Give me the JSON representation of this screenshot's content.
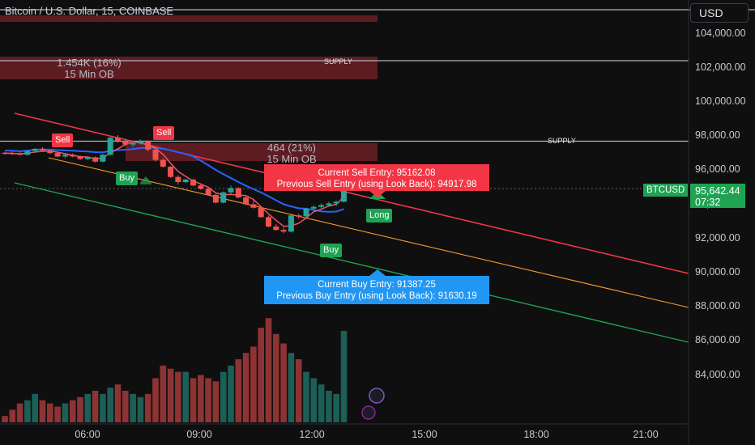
{
  "header": {
    "title": "Bitcoin / U.S. Dollar, 15, COINBASE",
    "currency": "USD"
  },
  "y_axis": [
    "104,000.00",
    "102,000.00",
    "100,000.00",
    "98,000.00",
    "96,000.00",
    "94,000.00",
    "92,000.00",
    "90,000.00",
    "88,000.00",
    "86,000.00",
    "84,000.00"
  ],
  "x_axis": [
    "06:00",
    "09:00",
    "12:00",
    "15:00",
    "18:00",
    "21:00"
  ],
  "zones": [
    {
      "line1": "1.454K (16%)",
      "line2": "15 Min OB",
      "supply": "SUPPLY"
    },
    {
      "line1": "464 (21%)",
      "line2": "15 Min OB",
      "supply": "SUPPLY"
    }
  ],
  "signals": {
    "sell": "Sell",
    "buy": "Buy",
    "long": "Long"
  },
  "sell_entry": {
    "current": "Current Sell Entry: 95162.08",
    "previous": "Previous Sell Entry (using Look Back): 94917.98"
  },
  "buy_entry": {
    "current": "Current Buy Entry: 91387.25",
    "previous": "Previous Buy Entry (using Look Back): 91630.19"
  },
  "price": {
    "symbol": "BTCUSD",
    "last": "95,642.44",
    "countdown": "07:32"
  },
  "colors": {
    "up": "#26a69a",
    "down": "#ef5350",
    "sell": "#f23645",
    "buy": "#1fa353",
    "info": "#2196f3"
  },
  "chart_data": {
    "type": "candlestick",
    "candles": [
      [
        97020,
        97080,
        96900,
        97000
      ],
      [
        97000,
        97100,
        96900,
        96970
      ],
      [
        96970,
        97050,
        96860,
        96900
      ],
      [
        96900,
        97150,
        96850,
        97120
      ],
      [
        97120,
        97300,
        97050,
        97250
      ],
      [
        97250,
        97350,
        97100,
        97150
      ],
      [
        97150,
        97200,
        96950,
        97000
      ],
      [
        97000,
        97050,
        96750,
        96800
      ],
      [
        96800,
        96950,
        96700,
        96900
      ],
      [
        96900,
        96980,
        96750,
        96800
      ],
      [
        96800,
        96850,
        96600,
        96650
      ],
      [
        96650,
        96800,
        96600,
        96750
      ],
      [
        96750,
        96800,
        96450,
        96500
      ],
      [
        96500,
        96950,
        96450,
        96900
      ],
      [
        96900,
        97950,
        96850,
        97900
      ],
      [
        97900,
        98050,
        97600,
        97700
      ],
      [
        97700,
        97850,
        97400,
        97500
      ],
      [
        97500,
        97700,
        97350,
        97600
      ],
      [
        97600,
        97800,
        97500,
        97700
      ],
      [
        97700,
        97750,
        97100,
        97200
      ],
      [
        97200,
        97250,
        96500,
        96600
      ],
      [
        96600,
        96700,
        96150,
        96200
      ],
      [
        96200,
        96250,
        95550,
        95600
      ],
      [
        95600,
        95700,
        95150,
        95300
      ],
      [
        95300,
        95500,
        95250,
        95450
      ],
      [
        95450,
        95500,
        95050,
        95100
      ],
      [
        95100,
        95200,
        94850,
        94900
      ],
      [
        94900,
        95000,
        94500,
        94550
      ],
      [
        94550,
        94600,
        94050,
        94100
      ],
      [
        94100,
        94750,
        94050,
        94700
      ],
      [
        94700,
        95100,
        94600,
        94950
      ],
      [
        94950,
        95000,
        94350,
        94400
      ],
      [
        94400,
        94500,
        93950,
        94000
      ],
      [
        94000,
        94250,
        93750,
        93800
      ],
      [
        93800,
        93850,
        93200,
        93250
      ],
      [
        93250,
        93350,
        92650,
        92700
      ],
      [
        92700,
        92850,
        92450,
        92500
      ],
      [
        92500,
        92650,
        92300,
        92400
      ],
      [
        92400,
        93450,
        92350,
        93350
      ],
      [
        93350,
        93450,
        93150,
        93300
      ],
      [
        93300,
        93800,
        93250,
        93750
      ],
      [
        93750,
        93950,
        93600,
        93850
      ],
      [
        93850,
        94050,
        93750,
        93950
      ],
      [
        93950,
        94150,
        93850,
        94050
      ],
      [
        94050,
        94200,
        93900,
        94150
      ],
      [
        94150,
        95750,
        94100,
        95650
      ]
    ],
    "volume": [
      2,
      4,
      6,
      7,
      9,
      7,
      6,
      5,
      6,
      7,
      8,
      9,
      10,
      9,
      11,
      12,
      10,
      9,
      8,
      9,
      14,
      18,
      17,
      16,
      16,
      14,
      15,
      14,
      13,
      16,
      18,
      20,
      22,
      24,
      30,
      33,
      28,
      25,
      22,
      20,
      16,
      14,
      12,
      10,
      9,
      29
    ],
    "series": [
      {
        "name": "",
        "type": "ma"
      },
      {
        "name": "",
        "type": "ema"
      }
    ],
    "ylim": [
      83000,
      105000
    ]
  }
}
